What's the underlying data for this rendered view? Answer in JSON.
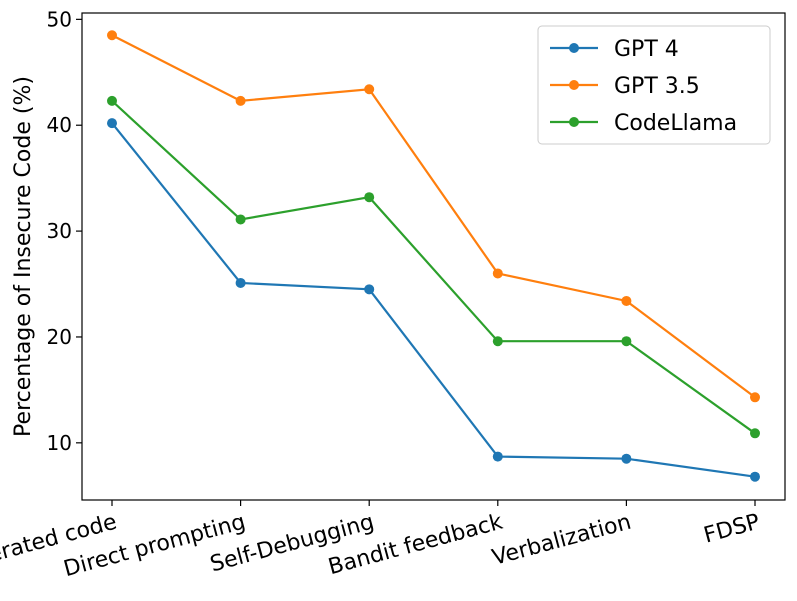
{
  "chart_data": {
    "type": "line",
    "title": "",
    "xlabel": "",
    "ylabel": "Percentage of Insecure Code (%)",
    "categories": [
      "Generated code",
      "Direct prompting",
      "Self-Debugging",
      "Bandit feedback",
      "Verbalization",
      "FDSP"
    ],
    "ylim": [
      4.6,
      50.6
    ],
    "yticks": [
      10,
      20,
      30,
      40,
      50
    ],
    "grid": false,
    "legend": "top-right",
    "series": [
      {
        "name": "GPT 4",
        "color": "#1f77b4",
        "values": [
          40.2,
          25.1,
          24.5,
          8.7,
          8.5,
          6.8
        ]
      },
      {
        "name": "GPT 3.5",
        "color": "#ff7f0e",
        "values": [
          48.5,
          42.3,
          43.4,
          26.0,
          23.4,
          14.3
        ]
      },
      {
        "name": "CodeLlama",
        "color": "#2ca02c",
        "values": [
          42.3,
          31.1,
          33.2,
          19.6,
          19.6,
          10.9
        ]
      }
    ]
  }
}
